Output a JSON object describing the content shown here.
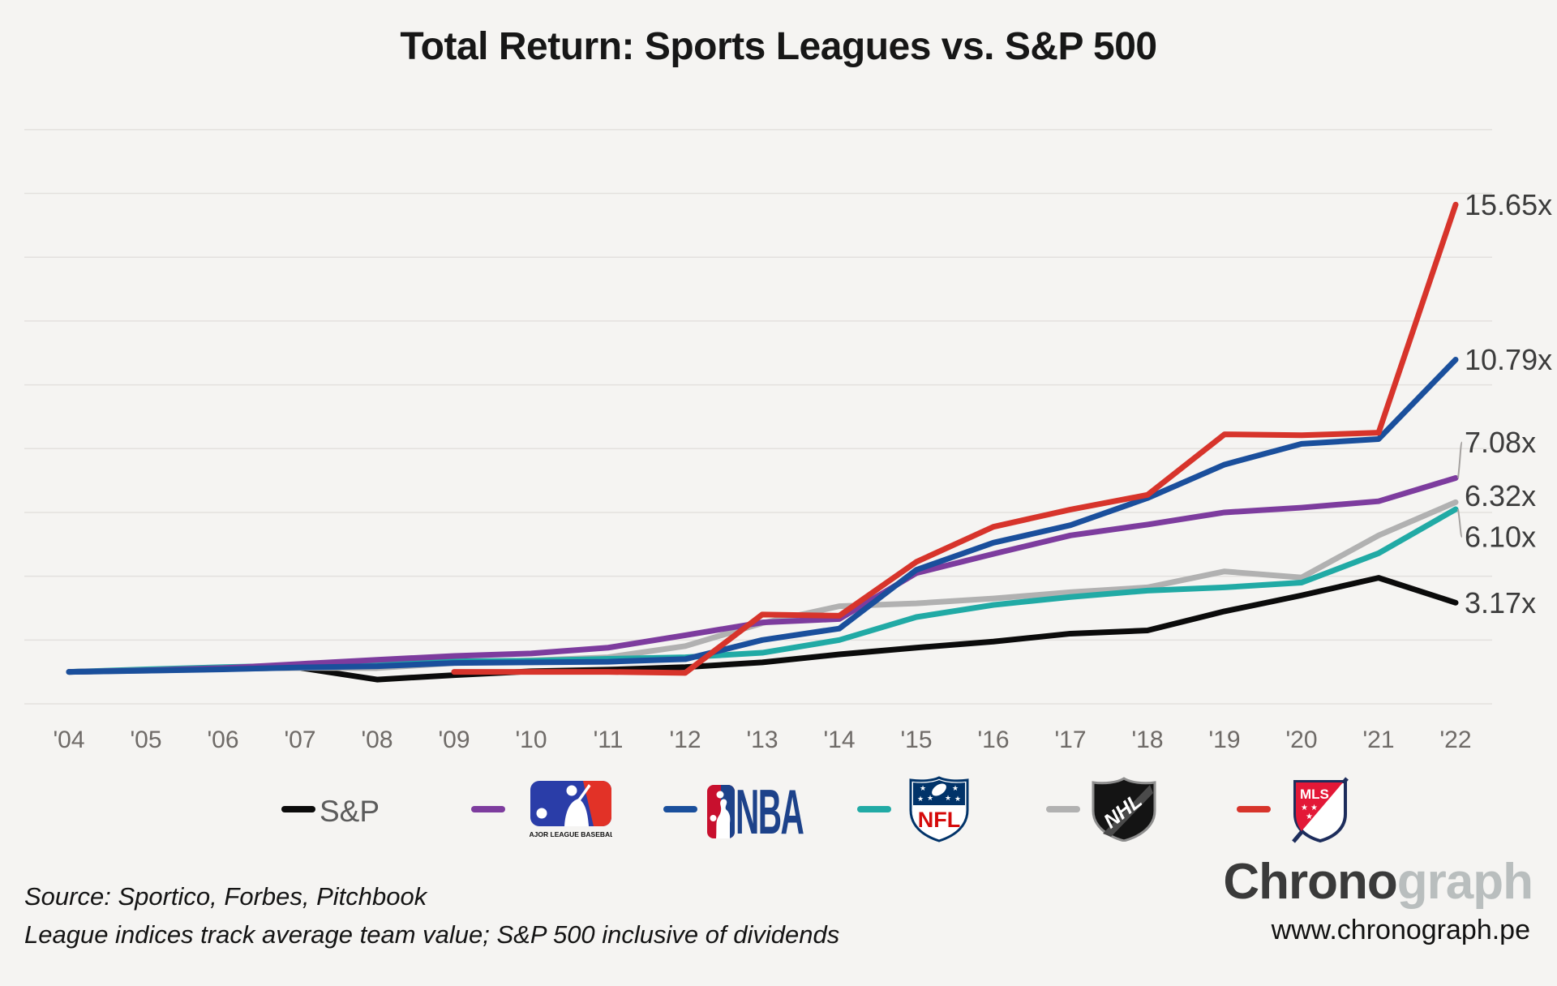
{
  "title": "Total Return: Sports Leagues vs. S&P 500",
  "chart_data": {
    "type": "line",
    "x_tick_labels": [
      "'04",
      "'05",
      "'06",
      "'07",
      "'08",
      "'09",
      "'10",
      "'11",
      "'12",
      "'13",
      "'14",
      "'15",
      "'16",
      "'17",
      "'18",
      "'19",
      "'20",
      "'21",
      "'22"
    ],
    "years": [
      2004,
      2005,
      2006,
      2007,
      2008,
      2009,
      2010,
      2011,
      2012,
      2013,
      2014,
      2015,
      2016,
      2017,
      2018,
      2019,
      2020,
      2021,
      2022
    ],
    "ylim": [
      0,
      19
    ],
    "gridline_step": 2,
    "grid": true,
    "legend_position": "bottom",
    "unit_suffix": "x",
    "series": [
      {
        "name": "S&P",
        "color": "#0b0b0b",
        "end_label": "3.17x",
        "final_multiple": 3.17,
        "values": [
          1.0,
          1.05,
          1.1,
          1.13,
          0.76,
          0.9,
          1.02,
          1.07,
          1.15,
          1.3,
          1.55,
          1.76,
          1.95,
          2.2,
          2.3,
          2.9,
          3.4,
          3.95,
          3.17
        ]
      },
      {
        "name": "NHL",
        "color": "#b1b1b1",
        "end_label": "6.32x",
        "final_multiple": 6.32,
        "values": [
          1.0,
          1.04,
          1.09,
          1.13,
          1.12,
          1.28,
          1.36,
          1.46,
          1.81,
          2.53,
          3.06,
          3.15,
          3.3,
          3.5,
          3.65,
          4.15,
          3.96,
          5.28,
          6.32
        ]
      },
      {
        "name": "NFL",
        "color": "#21aaa5",
        "end_label": "6.10x",
        "final_multiple": 6.1,
        "values": [
          1.0,
          1.08,
          1.15,
          1.2,
          1.22,
          1.33,
          1.35,
          1.41,
          1.46,
          1.6,
          2.0,
          2.72,
          3.1,
          3.35,
          3.55,
          3.65,
          3.8,
          4.72,
          6.1
        ]
      },
      {
        "name": "MLB",
        "color": "#7d3c9e",
        "end_label": "7.08x",
        "final_multiple": 7.08,
        "values": [
          1.0,
          1.05,
          1.12,
          1.25,
          1.38,
          1.5,
          1.58,
          1.76,
          2.15,
          2.55,
          2.66,
          4.1,
          4.7,
          5.28,
          5.62,
          6.0,
          6.15,
          6.35,
          7.08
        ]
      },
      {
        "name": "NBA",
        "color": "#1a4f9c",
        "end_label": "10.79x",
        "final_multiple": 10.79,
        "values": [
          1.0,
          1.04,
          1.08,
          1.14,
          1.18,
          1.28,
          1.3,
          1.32,
          1.4,
          2.0,
          2.36,
          4.2,
          5.05,
          5.6,
          6.45,
          7.5,
          8.15,
          8.3,
          10.79
        ]
      },
      {
        "name": "MLS",
        "color": "#d7342b",
        "end_label": "15.65x",
        "final_multiple": 15.65,
        "values": [
          null,
          null,
          null,
          null,
          null,
          1.0,
          1.0,
          1.0,
          0.97,
          2.8,
          2.76,
          4.45,
          5.55,
          6.09,
          6.55,
          8.45,
          8.42,
          8.5,
          15.65
        ]
      }
    ]
  },
  "legend": {
    "sp_label": "S&P",
    "order": [
      "S&P",
      "MLB",
      "NBA",
      "NFL",
      "NHL",
      "MLS"
    ]
  },
  "logos": {
    "mlb_caption": "MAJOR LEAGUE BASEBALL",
    "nba_wordmark": "NBA",
    "nfl_text": "NFL",
    "nhl_text": "NHL",
    "mls_text": "MLS"
  },
  "footer": {
    "source": "Source: Sportico, Forbes, Pitchbook",
    "note": "League indices track average team value; S&P 500 inclusive of dividends"
  },
  "branding": {
    "name_dark": "Chrono",
    "name_light": "graph",
    "url": "www.chronograph.pe"
  },
  "colors": {
    "background": "#f5f4f2",
    "gridline": "#e3e1de",
    "leader_line": "#a5a2a0",
    "tick_text": "#6e6a67",
    "end_label_text": "#3c3c3c"
  }
}
